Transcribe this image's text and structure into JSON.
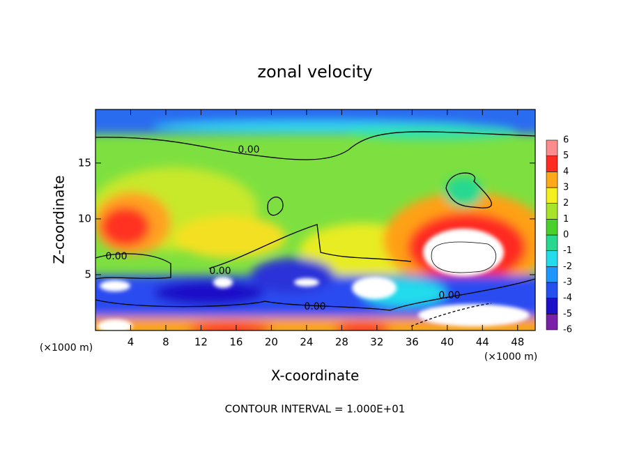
{
  "chart_data": {
    "type": "contour",
    "title": "zonal velocity",
    "x_label": "X-coordinate",
    "y_label": "Z-coordinate",
    "x_unit_label": "(×1000 m)",
    "annotation": "CONTOUR INTERVAL = 1.000E+01",
    "xlim": [
      0,
      50
    ],
    "ylim": [
      0,
      19.8
    ],
    "xticks": [
      4,
      8,
      12,
      16,
      20,
      24,
      28,
      32,
      36,
      40,
      44,
      48
    ],
    "yticks": [
      5,
      10,
      15
    ],
    "contour_labels": [
      "0.00",
      "0.00",
      "0.00",
      "0.00",
      "0.00"
    ],
    "colorbar": {
      "levels": [
        -6,
        -5,
        -4,
        -3,
        -2,
        -1,
        0,
        1,
        2,
        3,
        4,
        5,
        6
      ],
      "colors": [
        "#7a1fa8",
        "#1c10c8",
        "#2450f0",
        "#1e96ff",
        "#22dcec",
        "#28d890",
        "#4ad02a",
        "#a8e428",
        "#f4f020",
        "#ffa818",
        "#ff2a20",
        "#ff8c8c"
      ]
    }
  }
}
